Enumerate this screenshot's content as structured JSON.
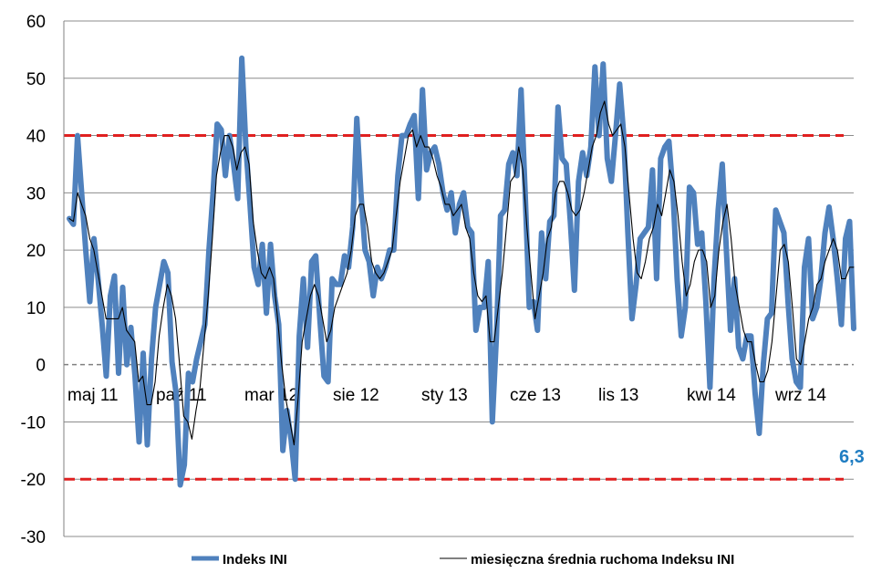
{
  "chart_data": {
    "type": "line",
    "title": "",
    "xlabel": "",
    "ylabel": "",
    "ylim": [
      -30,
      60
    ],
    "yticks": [
      -30,
      -20,
      -10,
      0,
      10,
      20,
      30,
      40,
      50,
      60
    ],
    "grid": true,
    "legend": "bottom",
    "x_tick_labels": [
      "maj 11",
      "paź 11",
      "mar 12",
      "sie 12",
      "sty 13",
      "cze 13",
      "lis 13",
      "kwi 14",
      "wrz 14"
    ],
    "reference_lines": [
      40,
      -20
    ],
    "last_value_label": "6,3",
    "colors": {
      "series1": "#4F81BD",
      "series2": "#000000",
      "reference": "#E02020",
      "zero": "#808080",
      "last_label": "#1F7DC2"
    },
    "series": [
      {
        "name": "Indeks INI",
        "values": [
          25.5,
          24.5,
          40,
          30,
          20,
          11,
          22,
          15,
          7,
          -2,
          12,
          15.5,
          -1.5,
          13.5,
          0,
          6.5,
          -2,
          -13.5,
          2,
          -14,
          1,
          10,
          14,
          18,
          16,
          0.5,
          -5,
          -21,
          -17.5,
          -1.5,
          -3,
          1,
          4,
          7,
          20,
          30,
          42,
          41,
          33,
          40,
          35,
          29,
          53.5,
          38,
          28,
          17,
          14,
          21,
          9,
          21,
          12,
          7,
          -15,
          -8,
          -13,
          -20,
          5,
          15,
          3,
          18,
          19,
          8,
          -2,
          -3,
          15,
          14,
          14,
          19,
          17,
          24,
          43,
          30,
          20,
          18,
          12,
          17,
          15,
          17,
          20,
          20,
          33,
          40,
          40,
          42,
          43.5,
          29,
          48,
          34,
          37,
          38,
          35,
          30,
          27,
          30,
          23,
          28,
          30,
          24,
          23,
          6,
          10,
          10,
          18,
          -10,
          5,
          26,
          27,
          35,
          37,
          33,
          48,
          30,
          10,
          11,
          6,
          23,
          15,
          25,
          26,
          45,
          36,
          35,
          25,
          13,
          32,
          37,
          33,
          38,
          52,
          40,
          52.5,
          36,
          32,
          40,
          49,
          40,
          23,
          8,
          14,
          22,
          23,
          24,
          34,
          15,
          36,
          38,
          39,
          30,
          15,
          5,
          10,
          31,
          30,
          21,
          23,
          11,
          -4,
          15,
          27,
          35,
          20,
          6,
          15,
          3,
          1,
          5,
          5,
          -5,
          -12,
          0,
          8,
          9,
          27,
          25,
          23,
          11,
          1,
          -3,
          -4,
          17,
          22,
          8,
          10,
          15,
          23,
          27.5,
          22,
          15,
          7,
          22,
          25,
          6.3
        ]
      },
      {
        "name": "miesięczna średnia ruchoma Indeksu INI",
        "values": [
          25.5,
          25,
          30,
          28,
          26,
          22,
          20,
          16,
          12,
          8,
          8,
          8,
          8,
          10,
          6,
          5,
          4,
          -3,
          -2,
          -7,
          -7,
          -3,
          5,
          10,
          14,
          12,
          8,
          0,
          -9,
          -10,
          -13,
          -8,
          -4,
          4,
          12,
          22,
          33,
          37,
          40,
          40,
          38,
          34,
          37,
          38,
          35,
          25,
          20,
          16,
          15,
          17,
          15,
          8,
          0,
          -6,
          -10,
          -14,
          -6,
          4,
          8,
          12,
          14,
          12,
          8,
          4,
          6,
          10,
          12,
          14,
          16,
          20,
          26,
          28,
          28,
          24,
          18,
          16,
          15,
          16,
          18,
          20,
          26,
          32,
          36,
          40,
          41,
          38,
          40,
          38,
          38,
          36,
          33,
          31,
          28,
          28,
          26,
          27,
          28,
          24,
          22,
          16,
          12,
          11,
          12,
          4,
          4,
          10,
          16,
          24,
          32,
          33,
          38,
          34,
          24,
          16,
          8,
          12,
          16,
          22,
          24,
          30,
          32,
          32,
          30,
          27,
          26,
          27,
          30,
          34,
          38,
          40,
          44,
          46,
          42,
          40,
          41,
          42,
          38,
          30,
          22,
          16,
          15,
          18,
          22,
          24,
          28,
          26,
          30,
          34,
          32,
          26,
          18,
          12,
          14,
          18,
          20,
          20,
          18,
          10,
          12,
          20,
          25,
          28,
          22,
          14,
          10,
          6,
          4,
          4,
          0,
          -3,
          -3,
          -1,
          4,
          12,
          20,
          21,
          18,
          10,
          1,
          0,
          4,
          8,
          10,
          14,
          15,
          18,
          20,
          22,
          20,
          15,
          15,
          17,
          17
        ]
      }
    ]
  }
}
